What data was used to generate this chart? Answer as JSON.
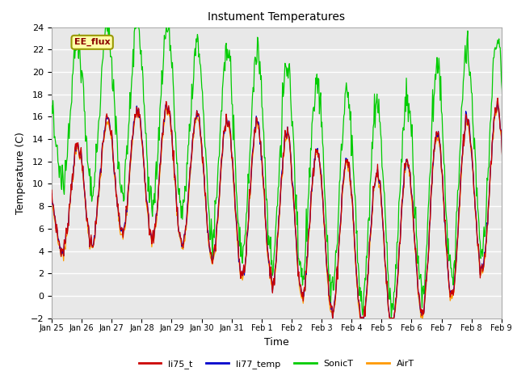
{
  "title": "Instument Temperatures",
  "xlabel": "Time",
  "ylabel": "Temperature (C)",
  "ylim": [
    -2,
    24
  ],
  "yticks": [
    -2,
    0,
    2,
    4,
    6,
    8,
    10,
    12,
    14,
    16,
    18,
    20,
    22,
    24
  ],
  "xtick_labels": [
    "Jan 25",
    "Jan 26",
    "Jan 27",
    "Jan 28",
    "Jan 29",
    "Jan 30",
    "Jan 31",
    "Feb 1",
    "Feb 2",
    "Feb 3",
    "Feb 4",
    "Feb 5",
    "Feb 6",
    "Feb 7",
    "Feb 8",
    "Feb 9"
  ],
  "colors": {
    "li75_t": "#cc0000",
    "li77_temp": "#0000cc",
    "SonicT": "#00cc00",
    "AirT": "#ff9900"
  },
  "plot_bg": "#e8e8e8",
  "grid_color": "#ffffff",
  "annotation_text": "EE_flux",
  "annotation_bg": "#ffffaa",
  "annotation_border": "#999900",
  "annotation_text_color": "#8B0000"
}
